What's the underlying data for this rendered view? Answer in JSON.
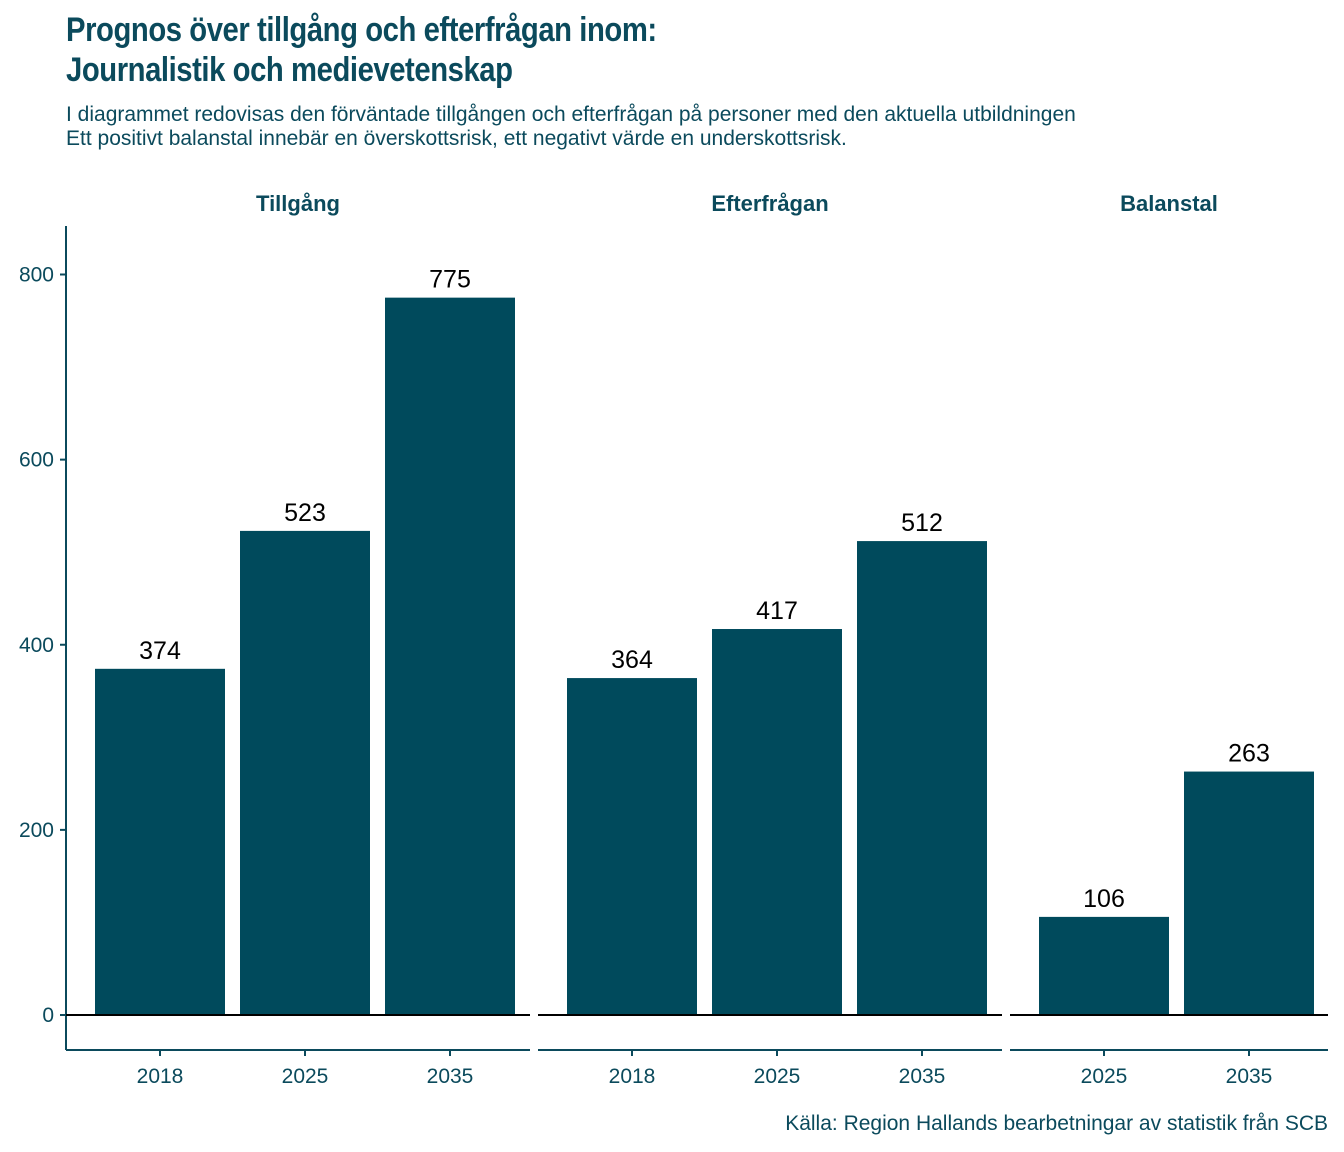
{
  "title_line1": "Prognos över tillgång och efterfrågan inom:",
  "title_line2": "Journalistik och medievetenskap",
  "subtitle_line1": "I diagrammet redovisas den förväntade tillgången och efterfrågan på personer med den aktuella utbildningen",
  "subtitle_line2": "Ett positivt balanstal innebär en överskottsrisk, ett negativt värde en underskottsrisk.",
  "caption": "Källa: Region Hallands bearbetningar av statistik från SCB",
  "colors": {
    "bar": "#004a5c",
    "text": "#0b4a5c",
    "label": "#000000"
  },
  "chart_data": {
    "type": "bar",
    "ylim": [
      -40,
      850
    ],
    "yticks": [
      0,
      200,
      400,
      600,
      800
    ],
    "grid": false,
    "legend": "none",
    "facets": [
      {
        "name": "Tillgång",
        "categories": [
          "2018",
          "2025",
          "2035"
        ],
        "values": [
          374,
          523,
          775
        ]
      },
      {
        "name": "Efterfrågan",
        "categories": [
          "2018",
          "2025",
          "2035"
        ],
        "values": [
          364,
          417,
          512
        ]
      },
      {
        "name": "Balanstal",
        "categories": [
          "2025",
          "2035"
        ],
        "values": [
          106,
          263
        ]
      }
    ]
  }
}
